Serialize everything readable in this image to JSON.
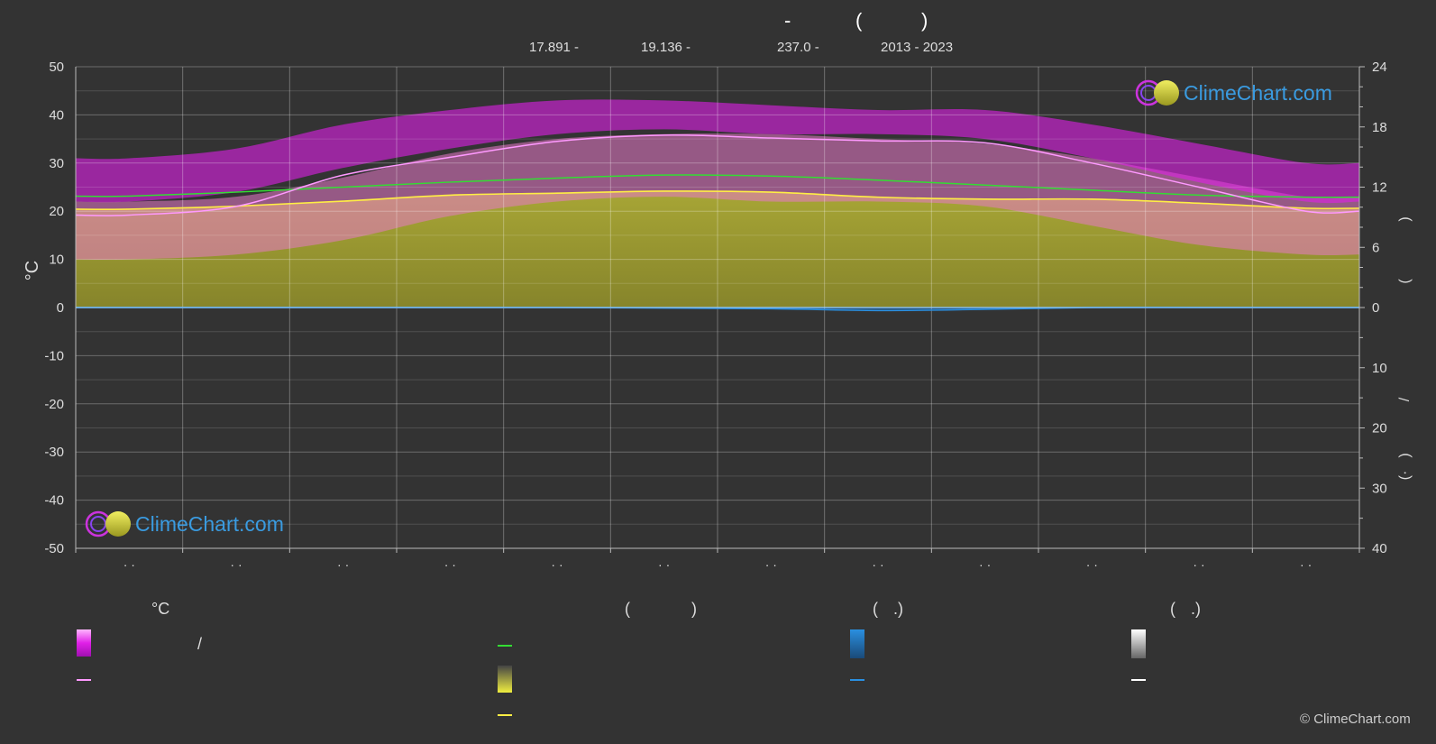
{
  "header": {
    "title_parts": [
      "-",
      "(",
      ")"
    ],
    "subtitle_parts": [
      "17.891 -",
      "19.136 -",
      "237.0 -",
      "2013 - 2023"
    ]
  },
  "chart_data": {
    "type": "area",
    "x": [
      "· ·",
      "· ·",
      "· ·",
      "· ·",
      "· ·",
      "· ·",
      "· ·",
      "· ·",
      "· ·",
      "· ·",
      "· ·",
      "· ·"
    ],
    "left_axis": {
      "label": "°C",
      "ylim": [
        -50,
        50
      ],
      "ticks": [
        50,
        40,
        30,
        20,
        10,
        0,
        -10,
        -20,
        -30,
        -40,
        -50
      ]
    },
    "right_axis_top": {
      "range": [
        0,
        24
      ],
      "ticks": [
        24,
        18,
        12,
        6,
        0
      ]
    },
    "right_axis_bottom": {
      "range": [
        0,
        40
      ],
      "ticks": [
        10,
        20,
        30,
        40
      ]
    },
    "right_axis_label_fragments": [
      ")",
      "(",
      "/",
      ")",
      "(·"
    ],
    "grid": true,
    "series": [
      {
        "key": "max_temp_mean",
        "values": [
          19.2,
          21.0,
          27.5,
          31.2,
          34.5,
          35.8,
          35.2,
          34.6,
          34.2,
          30.0,
          25.0,
          20.0
        ]
      },
      {
        "key": "day_length",
        "values": [
          11.1,
          11.5,
          12.0,
          12.5,
          12.9,
          13.2,
          13.1,
          12.7,
          12.2,
          11.7,
          11.2,
          11.0
        ]
      },
      {
        "key": "sunshine_mean",
        "values": [
          9.8,
          10.1,
          10.6,
          11.2,
          11.4,
          11.6,
          11.5,
          11.0,
          10.8,
          10.8,
          10.4,
          9.9
        ]
      },
      {
        "key": "precip_mean",
        "values": [
          0.0,
          0.0,
          0.0,
          0.0,
          0.0,
          0.1,
          0.2,
          0.5,
          0.3,
          0.0,
          0.0,
          0.0
        ]
      }
    ],
    "band_min_temp_range": [
      [
        10,
        22
      ],
      [
        11,
        23
      ],
      [
        14,
        27
      ],
      [
        19,
        32
      ],
      [
        22,
        35
      ],
      [
        23,
        36
      ],
      [
        22,
        36
      ],
      [
        22,
        35
      ],
      [
        21,
        34
      ],
      [
        17,
        31
      ],
      [
        13,
        27
      ],
      [
        11,
        23
      ]
    ],
    "band_max_temp_range": [
      [
        22,
        31
      ],
      [
        24,
        33
      ],
      [
        29,
        38
      ],
      [
        33,
        41
      ],
      [
        36,
        43
      ],
      [
        37,
        43
      ],
      [
        36,
        42
      ],
      [
        36,
        41
      ],
      [
        35,
        41
      ],
      [
        31,
        38
      ],
      [
        26,
        34
      ],
      [
        22,
        30
      ]
    ]
  },
  "legend": {
    "headers": [
      "°C",
      "(",
      ")",
      "(",
      ".)",
      "(",
      ".)"
    ],
    "labels": [
      "/"
    ]
  },
  "watermark": {
    "text": "ClimeChart.com"
  },
  "copyright": "© ClimeChart.com",
  "colors": {
    "background": "#333333",
    "magenta": "#e020e8",
    "pink_line": "#ff99ff",
    "green_line": "#33dd33",
    "yellow_line": "#ffee44",
    "sun_fill": "#a8a632",
    "blue": "#2a8fe0",
    "white": "#ffffff",
    "brand": "#3a9be0"
  }
}
